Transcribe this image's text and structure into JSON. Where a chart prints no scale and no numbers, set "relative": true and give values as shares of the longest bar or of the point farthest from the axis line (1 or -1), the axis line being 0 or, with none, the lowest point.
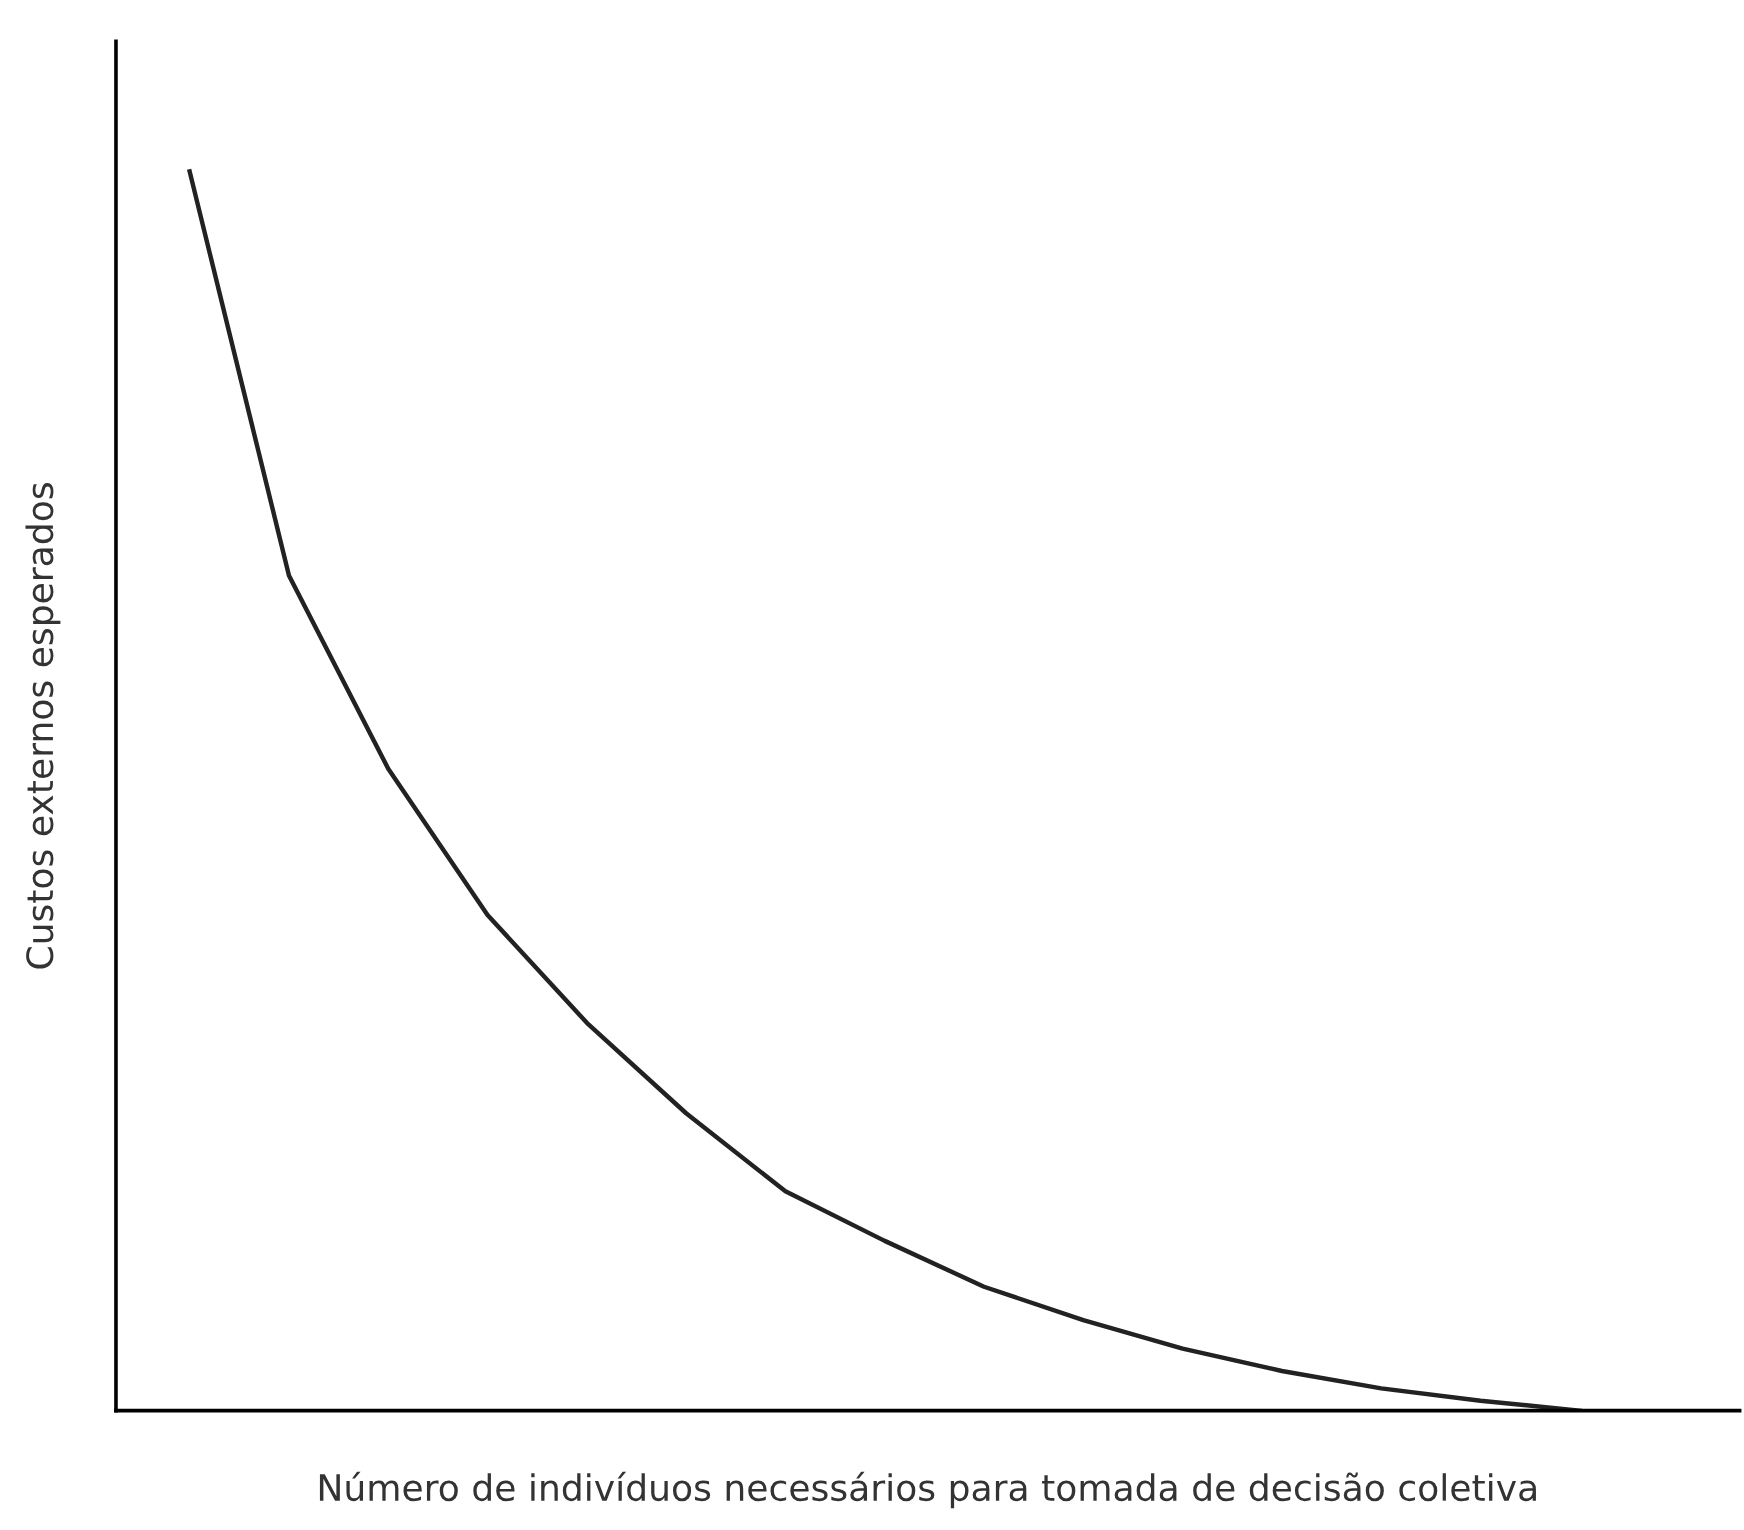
{
  "chart_data": {
    "type": "line",
    "relative": true,
    "xlabel": "Número de indivíduos necessários para tomada de decisão coletiva",
    "ylabel": "Custos externos esperados",
    "categories": [
      null,
      null,
      null,
      null,
      null,
      null,
      null,
      null,
      null,
      null,
      null,
      null,
      null,
      null,
      null
    ],
    "series": [
      {
        "color": "#222222",
        "values": [
          1.0,
          0.674,
          0.518,
          0.4,
          0.313,
          0.24,
          0.177,
          0.137,
          0.1,
          0.073,
          0.05,
          0.032,
          0.018,
          0.008,
          0.0
        ]
      }
    ],
    "grid": false,
    "legend": false,
    "tick_labels": false,
    "marker": "none",
    "line_style": "solid"
  }
}
